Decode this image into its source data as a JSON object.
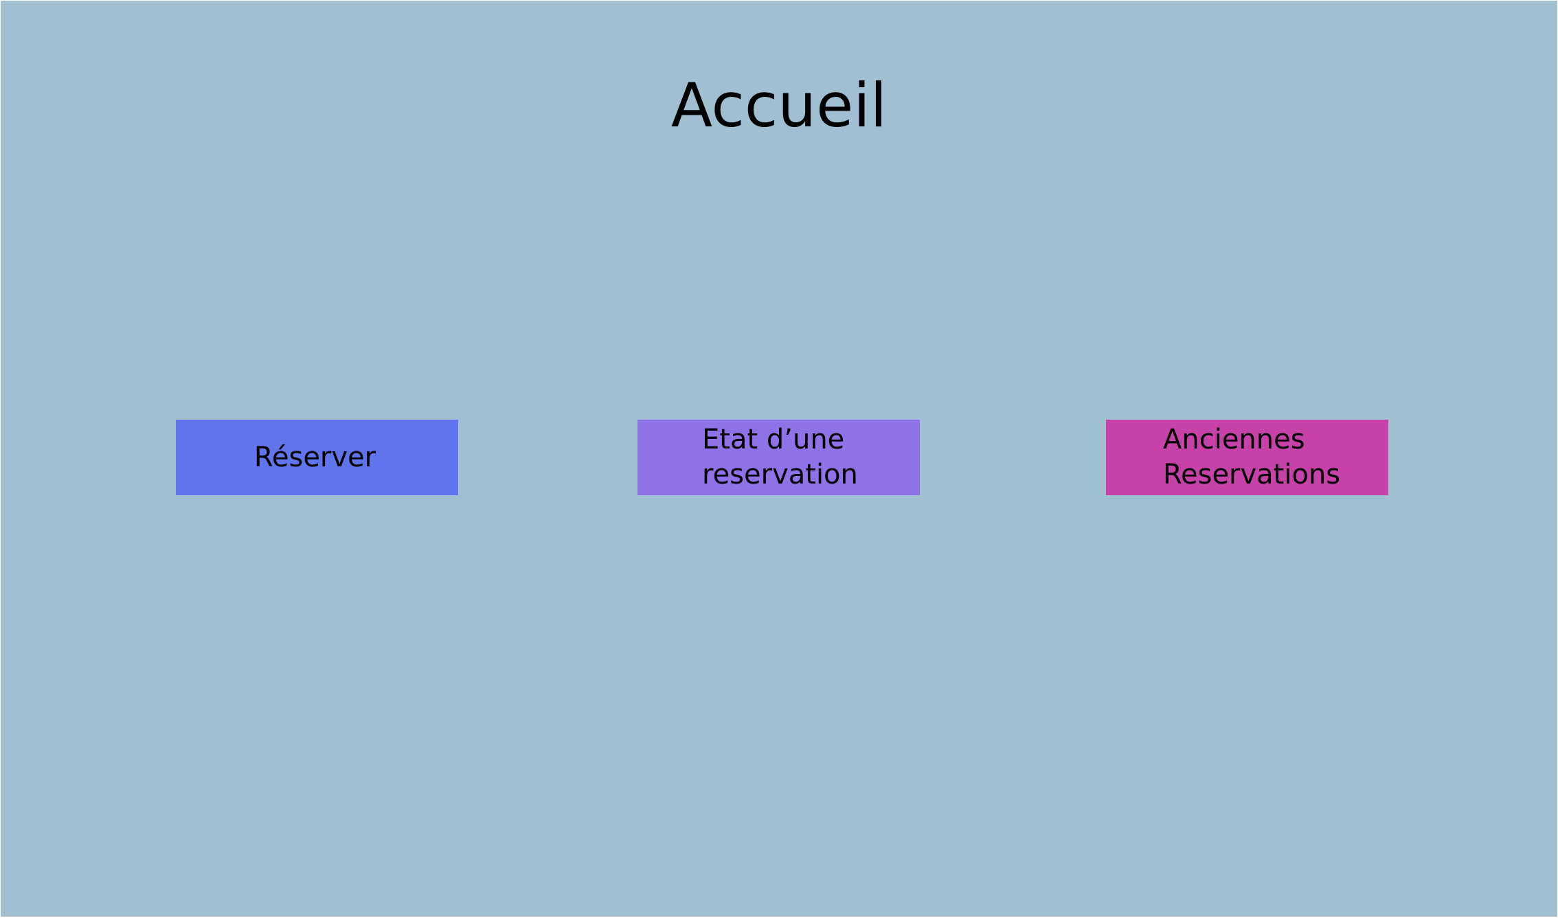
{
  "page": {
    "title": "Accueil",
    "background_color": "#a0c0d1"
  },
  "buttons": [
    {
      "id": "reserver",
      "lines": [
        "Réserver"
      ],
      "color": "#6074eb"
    },
    {
      "id": "etat",
      "lines": [
        "Etat d’une",
        "reservation"
      ],
      "color": "#8f72e8"
    },
    {
      "id": "anciennes",
      "lines": [
        "Anciennes",
        "Reservations"
      ],
      "color": "#c642a8"
    }
  ]
}
